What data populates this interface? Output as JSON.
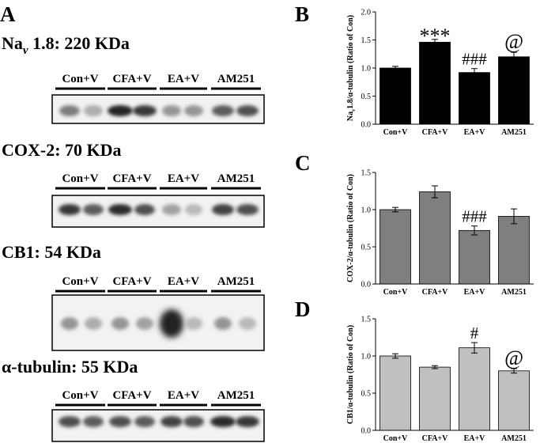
{
  "panels": {
    "A": "A",
    "B": "B",
    "C": "C",
    "D": "D"
  },
  "blots": [
    {
      "title_pre": "Na",
      "title_sub": "v",
      "title_post": " 1.8: 220 KDa"
    },
    {
      "title_pre": "COX-2: 70 KDa",
      "title_sub": "",
      "title_post": ""
    },
    {
      "title_pre": "CB1: 54 KDa",
      "title_sub": "",
      "title_post": ""
    },
    {
      "title_pre": "α-tubulin: 55 KDa",
      "title_sub": "",
      "title_post": ""
    }
  ],
  "groups": [
    "Con+V",
    "CFA+V",
    "EA+V",
    "AM251"
  ],
  "colors": {
    "chart_B": "#000000",
    "chart_C": "#7f7f7f",
    "chart_D": "#c0c0c0"
  },
  "chart_data": [
    {
      "type": "bar",
      "panel": "B",
      "ylabel_pre": "Na",
      "ylabel_sub": "v",
      "ylabel_post": "1.8/α-tubulin (Ratio of Con)",
      "categories": [
        "Con+V",
        "CFA+V",
        "EA+V",
        "AM251"
      ],
      "values": [
        1.0,
        1.46,
        0.92,
        1.2
      ],
      "errors": [
        0.03,
        0.05,
        0.07,
        0.08
      ],
      "annotations": [
        "",
        "***",
        "###",
        "@"
      ],
      "ylim": [
        0.0,
        2.0
      ],
      "yticks": [
        "0.0",
        "0.5",
        "1.0",
        "1.5",
        "2.0"
      ]
    },
    {
      "type": "bar",
      "panel": "C",
      "ylabel_pre": "COX-2/α-tubulin (Ratio of Con)",
      "ylabel_sub": "",
      "ylabel_post": "",
      "categories": [
        "Con+V",
        "CFA+V",
        "EA+V",
        "AM251"
      ],
      "values": [
        1.0,
        1.24,
        0.72,
        0.91
      ],
      "errors": [
        0.03,
        0.08,
        0.06,
        0.1
      ],
      "annotations": [
        "",
        "",
        "###",
        ""
      ],
      "ylim": [
        0.0,
        1.5
      ],
      "yticks": [
        "0.0",
        "0.5",
        "1.0",
        "1.5"
      ]
    },
    {
      "type": "bar",
      "panel": "D",
      "ylabel_pre": "CB1/α-tubulin (Ratio of Con)",
      "ylabel_sub": "",
      "ylabel_post": "",
      "categories": [
        "Con+V",
        "CFA+V",
        "EA+V",
        "AM251"
      ],
      "values": [
        1.0,
        0.85,
        1.11,
        0.8
      ],
      "errors": [
        0.03,
        0.02,
        0.07,
        0.03
      ],
      "annotations": [
        "",
        "",
        "#",
        "@"
      ],
      "ylim": [
        0.0,
        1.5
      ],
      "yticks": [
        "0.0",
        "0.5",
        "1.0",
        "1.5"
      ]
    }
  ]
}
